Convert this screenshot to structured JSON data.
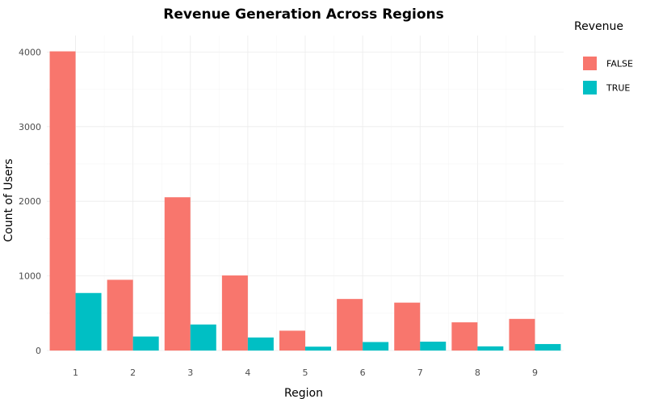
{
  "chart_data": {
    "type": "bar",
    "title": "Revenue Generation Across Regions",
    "xlabel": "Region",
    "ylabel": "Count of Users",
    "categories": [
      "1",
      "2",
      "3",
      "4",
      "5",
      "6",
      "7",
      "8",
      "9"
    ],
    "series": [
      {
        "name": "FALSE",
        "color": "#F8766D",
        "values": [
          4009,
          948,
          2054,
          1006,
          266,
          691,
          642,
          378,
          424
        ]
      },
      {
        "name": "TRUE",
        "color": "#00BFC4",
        "values": [
          771,
          188,
          349,
          175,
          52,
          114,
          119,
          56,
          87
        ]
      }
    ],
    "ylim": [
      0,
      4200
    ],
    "yticks": [
      0,
      1000,
      2000,
      3000,
      4000
    ],
    "grid": true,
    "legend": {
      "title": "Revenue",
      "position": "right"
    }
  }
}
